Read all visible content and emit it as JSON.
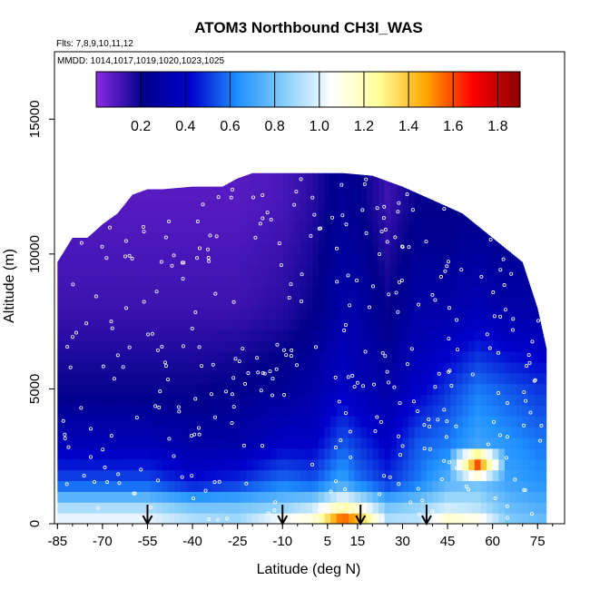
{
  "chart_data": {
    "type": "heatmap",
    "title": "ATOM3 Northbound CH3I_WAS",
    "subtitle_flights": "Flts: 7,8,9,10,11,12",
    "subtitle_dates": "MMDD: 1014,1017,1019,1020,1023,1025",
    "xlabel": "Latitude (deg N)",
    "ylabel": "Altitude (m)",
    "xlim": [
      -86,
      84
    ],
    "ylim": [
      0,
      17500
    ],
    "x_ticks": [
      -85,
      -70,
      -55,
      -40,
      -25,
      -10,
      5,
      15,
      30,
      45,
      60,
      75
    ],
    "x_tick_labels": [
      "-85",
      "-70",
      "-55",
      "-40",
      "-25",
      "-10",
      "5",
      "15",
      "30",
      "45",
      "60",
      "75"
    ],
    "y_ticks": [
      0,
      5000,
      10000,
      15000
    ],
    "y_tick_labels": [
      "0",
      "5000",
      "10000",
      "15000"
    ],
    "colorbar": {
      "range": [
        0,
        1.9
      ],
      "ticks": [
        0.2,
        0.4,
        0.6,
        0.8,
        1.0,
        1.2,
        1.4,
        1.6,
        1.8
      ],
      "tick_labels": [
        "0.2",
        "0.4",
        "0.6",
        "0.8",
        "1.0",
        "1.2",
        "1.4",
        "1.6",
        "1.8"
      ],
      "colors": [
        "#8a2be2",
        "#00008b",
        "#0000cd",
        "#1e90ff",
        "#87cefa",
        "#ffffff",
        "#ffff99",
        "#ffa500",
        "#ff0000",
        "#8b0000"
      ]
    },
    "top_envelope": [
      [
        -85,
        9700
      ],
      [
        -80,
        10600
      ],
      [
        -75,
        10600
      ],
      [
        -70,
        11100
      ],
      [
        -65,
        11500
      ],
      [
        -60,
        12200
      ],
      [
        -55,
        12400
      ],
      [
        -50,
        12400
      ],
      [
        -40,
        12500
      ],
      [
        -30,
        12500
      ],
      [
        -25,
        12800
      ],
      [
        -20,
        13000
      ],
      [
        -10,
        13000
      ],
      [
        0,
        13000
      ],
      [
        10,
        13000
      ],
      [
        20,
        12900
      ],
      [
        30,
        12500
      ],
      [
        40,
        12000
      ],
      [
        50,
        11500
      ],
      [
        60,
        10600
      ],
      [
        70,
        9700
      ],
      [
        75,
        8000
      ],
      [
        78,
        6500
      ]
    ],
    "profiles": [
      {
        "lat": -55,
        "values": [
          [
            0,
            1.05
          ],
          [
            500,
            0.95
          ],
          [
            1500,
            0.55
          ],
          [
            3000,
            0.35
          ],
          [
            5000,
            0.2
          ],
          [
            8000,
            0.12
          ],
          [
            12000,
            0.08
          ]
        ]
      },
      {
        "lat": -40,
        "values": [
          [
            0,
            0.95
          ],
          [
            500,
            0.85
          ],
          [
            1500,
            0.45
          ],
          [
            3000,
            0.3
          ],
          [
            5000,
            0.2
          ],
          [
            8000,
            0.12
          ],
          [
            12000,
            0.08
          ]
        ]
      },
      {
        "lat": -25,
        "values": [
          [
            0,
            0.9
          ],
          [
            500,
            0.85
          ],
          [
            1500,
            0.5
          ],
          [
            3000,
            0.3
          ],
          [
            5000,
            0.22
          ],
          [
            8000,
            0.12
          ],
          [
            12000,
            0.08
          ]
        ]
      },
      {
        "lat": -10,
        "values": [
          [
            0,
            1.15
          ],
          [
            500,
            0.9
          ],
          [
            1500,
            0.6
          ],
          [
            3000,
            0.4
          ],
          [
            5000,
            0.25
          ],
          [
            8000,
            0.15
          ],
          [
            12000,
            0.1
          ]
        ]
      },
      {
        "lat": 0,
        "values": [
          [
            0,
            1.2
          ],
          [
            500,
            1.0
          ],
          [
            1500,
            0.55
          ],
          [
            3000,
            0.4
          ],
          [
            5000,
            0.3
          ],
          [
            8000,
            0.2
          ],
          [
            12000,
            0.15
          ]
        ]
      },
      {
        "lat": 10,
        "values": [
          [
            0,
            1.75
          ],
          [
            500,
            1.3
          ],
          [
            1500,
            0.7
          ],
          [
            3000,
            0.55
          ],
          [
            5000,
            0.4
          ],
          [
            8000,
            0.3
          ],
          [
            12000,
            0.25
          ]
        ]
      },
      {
        "lat": 15,
        "values": [
          [
            0,
            1.6
          ],
          [
            500,
            1.2
          ],
          [
            1500,
            0.6
          ],
          [
            3000,
            0.5
          ],
          [
            5000,
            0.35
          ],
          [
            8000,
            0.3
          ],
          [
            12000,
            0.22
          ]
        ]
      },
      {
        "lat": 25,
        "values": [
          [
            0,
            0.95
          ],
          [
            500,
            0.85
          ],
          [
            1500,
            0.5
          ],
          [
            3000,
            0.4
          ],
          [
            5000,
            0.3
          ],
          [
            8000,
            0.2
          ],
          [
            12000,
            0.12
          ]
        ]
      },
      {
        "lat": 35,
        "values": [
          [
            0,
            0.95
          ],
          [
            500,
            0.9
          ],
          [
            1500,
            0.6
          ],
          [
            3000,
            0.55
          ],
          [
            5000,
            0.4
          ],
          [
            8000,
            0.3
          ],
          [
            12000,
            0.2
          ]
        ]
      },
      {
        "lat": 45,
        "values": [
          [
            0,
            1.25
          ],
          [
            500,
            1.0
          ],
          [
            1500,
            0.75
          ],
          [
            3000,
            0.6
          ],
          [
            5000,
            0.5
          ],
          [
            8000,
            0.3
          ],
          [
            12000,
            0.2
          ]
        ]
      },
      {
        "lat": 55,
        "values": [
          [
            0,
            1.2
          ],
          [
            500,
            0.95
          ],
          [
            1500,
            0.8
          ],
          [
            2300,
            1.7
          ],
          [
            3000,
            0.7
          ],
          [
            5000,
            0.6
          ],
          [
            8000,
            0.35
          ],
          [
            12000,
            0.2
          ]
        ]
      },
      {
        "lat": 65,
        "values": [
          [
            0,
            0.85
          ],
          [
            500,
            0.8
          ],
          [
            1500,
            0.7
          ],
          [
            3000,
            0.65
          ],
          [
            5000,
            0.55
          ],
          [
            8000,
            0.3
          ],
          [
            12000,
            0.2
          ]
        ]
      },
      {
        "lat": 75,
        "values": [
          [
            0,
            0.8
          ],
          [
            500,
            0.75
          ],
          [
            1500,
            0.65
          ],
          [
            3000,
            0.6
          ],
          [
            5000,
            0.5
          ],
          [
            8000,
            0.3
          ],
          [
            12000,
            0.2
          ]
        ]
      }
    ],
    "arrow_latitudes": [
      -55,
      -10,
      16,
      38
    ]
  }
}
